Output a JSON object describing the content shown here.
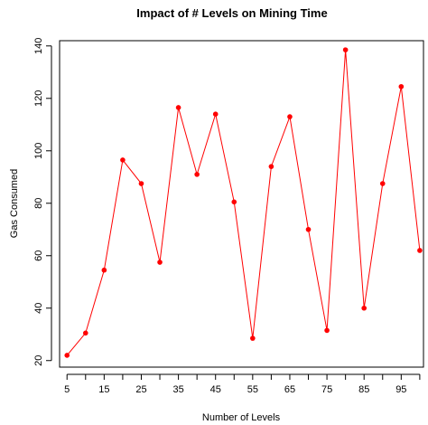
{
  "chart_data": {
    "type": "line",
    "title": "Impact of # Levels on Mining Time",
    "xlabel": "Number of Levels",
    "ylabel": "Gas Consumed",
    "x": [
      5,
      10,
      15,
      20,
      25,
      30,
      35,
      40,
      45,
      50,
      55,
      60,
      65,
      70,
      75,
      80,
      85,
      90,
      95,
      100
    ],
    "series": [
      {
        "values": [
          22,
          30.5,
          54.5,
          96.5,
          87.5,
          57.5,
          116.5,
          91,
          114,
          80.5,
          28.5,
          94,
          113,
          70,
          31.5,
          138.5,
          40,
          87.5,
          124.5,
          62
        ]
      }
    ],
    "xlim": [
      3,
      101
    ],
    "ylim": [
      17.5,
      142
    ],
    "x_ticks": [
      "5",
      "15",
      "25",
      "35",
      "45",
      "55",
      "65",
      "75",
      "85",
      "95"
    ],
    "x_minor_ticks": [
      10,
      20,
      30,
      40,
      50,
      60,
      70,
      80,
      90,
      100
    ],
    "y_ticks": [
      "20",
      "40",
      "60",
      "80",
      "100",
      "120",
      "140"
    ],
    "line_color": "#ff0000",
    "point_color": "#ff0000",
    "grid": false,
    "legend": "none"
  }
}
